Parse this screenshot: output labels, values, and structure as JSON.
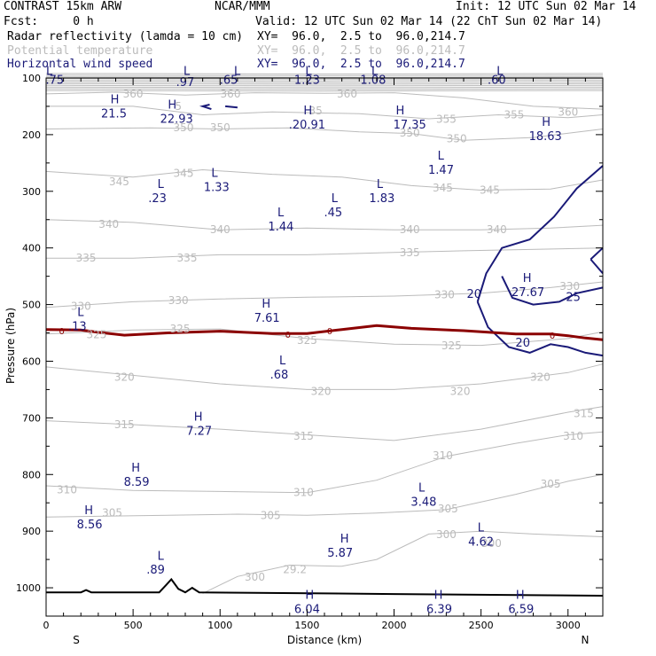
{
  "header": {
    "model": "CONTRAST 15km ARW",
    "org": "NCAR/MMM",
    "init": "Init: 12 UTC Sun 02 Mar 14",
    "fcst": "Fcst:     0 h",
    "valid": "Valid: 12 UTC Sun 02 Mar 14 (22 ChT Sun 02 Mar 14)",
    "fields": [
      {
        "name": "Radar reflectivity (lamda = 10 cm)",
        "xy": "XY=  96.0,  2.5 to  96.0,214.7",
        "color": "#000000"
      },
      {
        "name": "Potential temperature",
        "xy": "XY=  96.0,  2.5 to  96.0,214.7",
        "color": "#bbbbbb"
      },
      {
        "name": "Horizontal wind speed",
        "xy": "XY=  96.0,  2.5 to  96.0,214.7",
        "color": "#1a1a78"
      }
    ]
  },
  "chart_data": {
    "type": "contour-cross-section",
    "xlabel": "Distance (km)",
    "ylabel": "Pressure (hPa)",
    "xlim": [
      0,
      3200
    ],
    "ylim": [
      1050,
      100
    ],
    "xticks": [
      "0",
      "500",
      "1000",
      "1500",
      "2000",
      "2500",
      "3000"
    ],
    "yticks": [
      "100",
      "200",
      "300",
      "400",
      "500",
      "600",
      "700",
      "800",
      "900",
      "1000"
    ],
    "xtick_values": [
      0,
      500,
      1000,
      1500,
      2000,
      2500,
      3000
    ],
    "ytick_values": [
      100,
      200,
      300,
      400,
      500,
      600,
      700,
      800,
      900,
      1000
    ],
    "endpoint_left": "S",
    "endpoint_right": "N",
    "theta_labels": [
      {
        "text": "360",
        "x": 500,
        "y": 128
      },
      {
        "text": "360",
        "x": 1060,
        "y": 128
      },
      {
        "text": "360",
        "x": 1730,
        "y": 128
      },
      {
        "text": "360",
        "x": 3000,
        "y": 160
      },
      {
        "text": "355",
        "x": 2300,
        "y": 173
      },
      {
        "text": "355",
        "x": 2690,
        "y": 165
      },
      {
        "text": "350",
        "x": 790,
        "y": 188
      },
      {
        "text": "350",
        "x": 1000,
        "y": 188
      },
      {
        "text": "350",
        "x": 2090,
        "y": 197
      },
      {
        "text": "350",
        "x": 2360,
        "y": 207
      },
      {
        "text": "345",
        "x": 420,
        "y": 283
      },
      {
        "text": "345",
        "x": 790,
        "y": 268
      },
      {
        "text": "345",
        "x": 2280,
        "y": 294
      },
      {
        "text": "345",
        "x": 2550,
        "y": 298
      },
      {
        "text": "340",
        "x": 360,
        "y": 358
      },
      {
        "text": "340",
        "x": 1000,
        "y": 368
      },
      {
        "text": "340",
        "x": 2090,
        "y": 368
      },
      {
        "text": "340",
        "x": 2590,
        "y": 368
      },
      {
        "text": "335",
        "x": 230,
        "y": 418
      },
      {
        "text": "335",
        "x": 810,
        "y": 418
      },
      {
        "text": "335",
        "x": 2090,
        "y": 408
      },
      {
        "text": "330",
        "x": 200,
        "y": 503
      },
      {
        "text": "330",
        "x": 760,
        "y": 493
      },
      {
        "text": "330",
        "x": 2290,
        "y": 483
      },
      {
        "text": "330",
        "x": 3010,
        "y": 468
      },
      {
        "text": "325",
        "x": 290,
        "y": 553
      },
      {
        "text": "325",
        "x": 770,
        "y": 543
      },
      {
        "text": "325",
        "x": 1500,
        "y": 563
      },
      {
        "text": "325",
        "x": 2330,
        "y": 573
      },
      {
        "text": "320",
        "x": 450,
        "y": 628
      },
      {
        "text": "320",
        "x": 1580,
        "y": 653
      },
      {
        "text": "320",
        "x": 2380,
        "y": 653
      },
      {
        "text": "320",
        "x": 2840,
        "y": 628
      },
      {
        "text": "315",
        "x": 450,
        "y": 712
      },
      {
        "text": "315",
        "x": 1480,
        "y": 732
      },
      {
        "text": "315",
        "x": 3090,
        "y": 692
      },
      {
        "text": "310",
        "x": 120,
        "y": 827
      },
      {
        "text": "310",
        "x": 1480,
        "y": 832
      },
      {
        "text": "310",
        "x": 2280,
        "y": 767
      },
      {
        "text": "310",
        "x": 3030,
        "y": 732
      },
      {
        "text": "305",
        "x": 1290,
        "y": 872
      },
      {
        "text": "305",
        "x": 2310,
        "y": 861
      },
      {
        "text": "305",
        "x": 2900,
        "y": 817
      },
      {
        "text": "300",
        "x": 1200,
        "y": 981
      },
      {
        "text": "300",
        "x": 2300,
        "y": 906
      },
      {
        "text": "300",
        "x": 2560,
        "y": 922
      }
    ],
    "theta_partial_labels": [
      {
        "text": "305",
        "x": 380,
        "y": 868
      },
      {
        "text": "35",
        "x": 1550,
        "y": 158
      },
      {
        "text": "5",
        "x": 760,
        "y": 150
      },
      {
        "text": "29.2",
        "x": 1430,
        "y": 968
      }
    ],
    "wind_contour_labels": [
      {
        "text": "20",
        "x": 2460,
        "y": 482
      },
      {
        "text": "25",
        "x": 3030,
        "y": 487
      },
      {
        "text": "20",
        "x": 2740,
        "y": 568
      }
    ],
    "reflectivity_labels": [
      {
        "text": "0",
        "x": 90,
        "y": 546
      },
      {
        "text": "0",
        "x": 1390,
        "y": 552
      },
      {
        "text": "0",
        "x": 1630,
        "y": 546
      },
      {
        "text": "0",
        "x": 2910,
        "y": 554
      }
    ],
    "extrema": [
      {
        "type": "L",
        "value": ".75",
        "x": 50,
        "y": 104,
        "lx": 0,
        "ly": 88
      },
      {
        "type": "L",
        "value": ".97",
        "x": 800,
        "y": 108,
        "lx": 790,
        "ly": 88
      },
      {
        "type": "L",
        "value": ".65",
        "x": 1050,
        "y": 104,
        "lx": 1080,
        "ly": 88
      },
      {
        "type": "L",
        "value": "1.23",
        "x": 1500,
        "y": 104,
        "lx": 1490,
        "ly": 88
      },
      {
        "type": "L",
        "value": "1.08",
        "x": 1880,
        "y": 104,
        "lx": 1870,
        "ly": 88
      },
      {
        "type": "L",
        "value": ".60",
        "x": 2590,
        "y": 104,
        "lx": 2590,
        "ly": 88
      },
      {
        "type": "H",
        "value": "21.5",
        "x": 390,
        "y": 163,
        "lx": 370,
        "ly": 138
      },
      {
        "type": "H",
        "value": "22.93",
        "x": 750,
        "y": 173,
        "lx": 700,
        "ly": 148
      },
      {
        "type": "H",
        "value": ".20.91",
        "x": 1500,
        "y": 183,
        "lx": 1480,
        "ly": 158
      },
      {
        "type": "H",
        "value": "17.35",
        "x": 2090,
        "y": 183,
        "lx": 2010,
        "ly": 158
      },
      {
        "type": "H",
        "value": "18.63",
        "x": 2870,
        "y": 203,
        "lx": 2850,
        "ly": 178
      },
      {
        "type": "L",
        "value": "1.47",
        "x": 2270,
        "y": 263,
        "lx": 2250,
        "ly": 238
      },
      {
        "type": "L",
        "value": ".23",
        "x": 640,
        "y": 313,
        "lx": 640,
        "ly": 288
      },
      {
        "type": "L",
        "value": "1.33",
        "x": 980,
        "y": 293,
        "lx": 950,
        "ly": 268
      },
      {
        "type": "L",
        "value": "1.83",
        "x": 1930,
        "y": 313,
        "lx": 1900,
        "ly": 288
      },
      {
        "type": "L",
        "value": ".45",
        "x": 1650,
        "y": 338,
        "lx": 1640,
        "ly": 313
      },
      {
        "type": "L",
        "value": "1.44",
        "x": 1350,
        "y": 363,
        "lx": 1330,
        "ly": 338
      },
      {
        "type": "H",
        "value": "27.67",
        "x": 2770,
        "y": 479,
        "lx": 2740,
        "ly": 454
      },
      {
        "type": "H",
        "value": "7.61",
        "x": 1270,
        "y": 524,
        "lx": 1240,
        "ly": 499
      },
      {
        "type": "L",
        "value": ".13",
        "x": 180,
        "y": 539,
        "lx": 180,
        "ly": 514
      },
      {
        "type": "L",
        "value": ".68",
        "x": 1340,
        "y": 624,
        "lx": 1340,
        "ly": 599
      },
      {
        "type": "H",
        "value": "7.27",
        "x": 880,
        "y": 724,
        "lx": 850,
        "ly": 699
      },
      {
        "type": "H",
        "value": "8.59",
        "x": 520,
        "y": 814,
        "lx": 490,
        "ly": 789
      },
      {
        "type": "H",
        "value": "8.56",
        "x": 250,
        "y": 889,
        "lx": 220,
        "ly": 864
      },
      {
        "type": "L",
        "value": "3.48",
        "x": 2170,
        "y": 849,
        "lx": 2140,
        "ly": 824
      },
      {
        "type": "H",
        "value": "5.87",
        "x": 1690,
        "y": 939,
        "lx": 1690,
        "ly": 914
      },
      {
        "type": "L",
        "value": "4.62",
        "x": 2500,
        "y": 919,
        "lx": 2480,
        "ly": 894
      },
      {
        "type": "L",
        "value": ".89",
        "x": 630,
        "y": 969,
        "lx": 640,
        "ly": 944
      },
      {
        "type": "H",
        "value": "6.04",
        "x": 1500,
        "y": 1038,
        "lx": 1490,
        "ly": 1013
      },
      {
        "type": "H",
        "value": "6.39",
        "x": 2260,
        "y": 1038,
        "lx": 2230,
        "ly": 1013
      },
      {
        "type": "H",
        "value": "6.59",
        "x": 2730,
        "y": 1038,
        "lx": 2700,
        "ly": 1013
      }
    ]
  },
  "colors": {
    "theta": "#bbbbbb",
    "wind": "#1a1a78",
    "reflectivity": "#8b0000",
    "terrain": "#000000"
  }
}
